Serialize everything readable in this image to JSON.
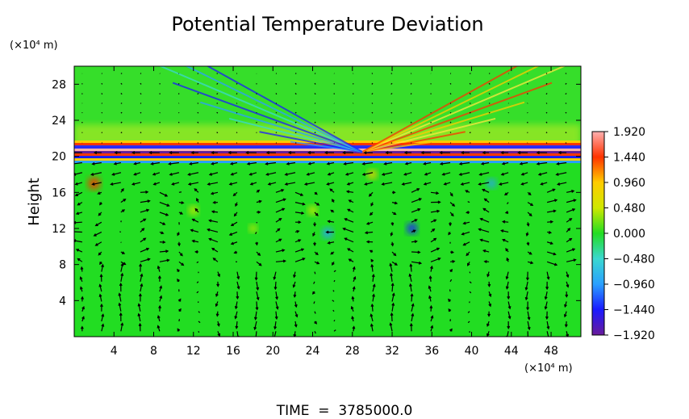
{
  "chart_data": {
    "type": "heatmap",
    "title": "Potential Temperature Deviation",
    "ylabel": "Height",
    "x_unit_label": "(×10⁴ m)",
    "y_unit_label": "(×10⁴ m)",
    "x_ticks": [
      4,
      8,
      12,
      16,
      20,
      24,
      28,
      32,
      36,
      40,
      44,
      48
    ],
    "y_ticks": [
      4,
      8,
      12,
      16,
      20,
      24,
      28
    ],
    "xlim": [
      0,
      51
    ],
    "ylim": [
      0,
      30
    ],
    "colorbar": {
      "ticks": [
        1.92,
        1.44,
        0.96,
        0.48,
        0.0,
        -0.48,
        -0.96,
        -1.44,
        -1.92
      ],
      "tick_labels": [
        "1.920",
        "1.440",
        "0.960",
        "0.480",
        "0.000",
        "−0.480",
        "−0.960",
        "−1.440",
        "−1.920"
      ],
      "range": [
        -1.92,
        1.92
      ],
      "colors_low_to_high": [
        "#6a1b9a",
        "#1a1aff",
        "#2aa0ff",
        "#3ad8d0",
        "#22dd22",
        "#cfe800",
        "#ffcc00",
        "#ff3300",
        "#ffb0b0"
      ]
    },
    "features": {
      "background_value": 0.0,
      "background_color": "#22dd22",
      "tropopause_band_height": 20.5,
      "overlay": "wind vectors"
    }
  },
  "footer": {
    "time_label": "TIME  =  3785000.0"
  }
}
